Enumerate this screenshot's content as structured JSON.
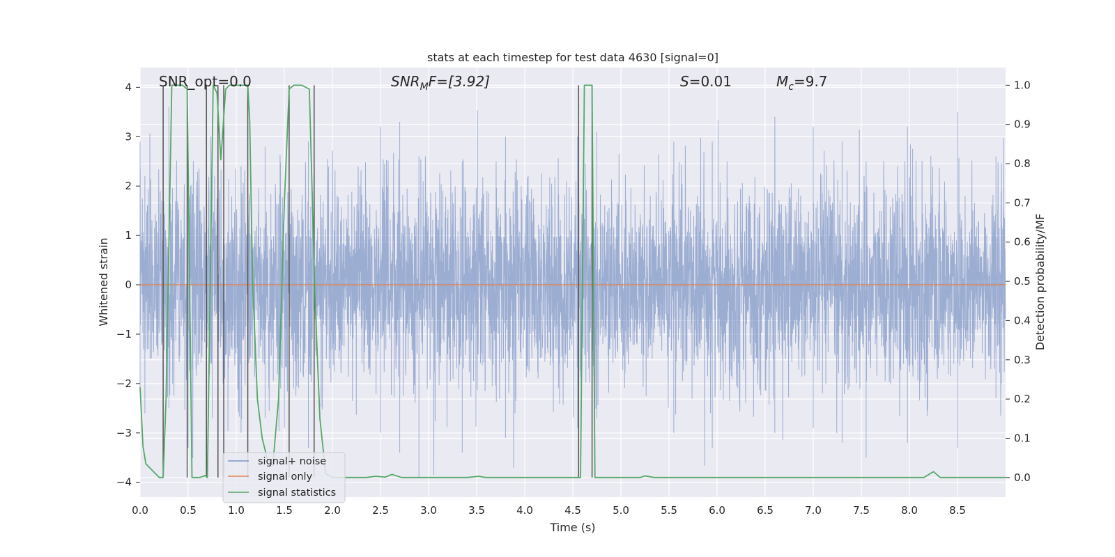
{
  "chart_data": {
    "type": "line",
    "title": "stats at each timestep for test data 4630 [signal=0]",
    "xlabel": "Time (s)",
    "ylabel_left": "Whitened strain",
    "ylabel_right": "Detection probability/MF",
    "xlim": [
      0.0,
      9.0
    ],
    "ylim_left": [
      -4.3,
      4.4
    ],
    "ylim_right": [
      -0.05,
      1.045
    ],
    "x_ticks": [
      0.0,
      0.5,
      1.0,
      1.5,
      2.0,
      2.5,
      3.0,
      3.5,
      4.0,
      4.5,
      5.0,
      5.5,
      6.0,
      6.5,
      7.0,
      7.5,
      8.0,
      8.5
    ],
    "x_tick_labels": [
      "0.0",
      "0.5",
      "1.0",
      "1.5",
      "2.0",
      "2.5",
      "3.0",
      "3.5",
      "4.0",
      "4.5",
      "5.0",
      "5.5",
      "6.0",
      "6.5",
      "7.0",
      "7.5",
      "8.0",
      "8.5"
    ],
    "y_ticks_left": [
      -4,
      -3,
      -2,
      -1,
      0,
      1,
      2,
      3,
      4
    ],
    "y_tick_labels_left": [
      "−4",
      "−3",
      "−2",
      "−1",
      "0",
      "1",
      "2",
      "3",
      "4"
    ],
    "y_ticks_right": [
      0.0,
      0.1,
      0.2,
      0.3,
      0.4,
      0.5,
      0.6,
      0.7,
      0.8,
      0.9,
      1.0
    ],
    "y_tick_labels_right": [
      "0.0",
      "0.1",
      "0.2",
      "0.3",
      "0.4",
      "0.5",
      "0.6",
      "0.7",
      "0.8",
      "0.9",
      "1.0"
    ],
    "grid": true,
    "annotations": {
      "snr_opt": "SNR_opt=0.0",
      "snr_mf_label": "SNR",
      "snr_mf_sub": "M",
      "snr_mf_rest": "F=[3.92]",
      "s_label": "S",
      "s_rest": "=0.01",
      "mc_label": "M",
      "mc_sub": "c",
      "mc_rest": "=9.7"
    },
    "legend": {
      "location": "lower-left",
      "entries": [
        "signal+ noise",
        "signal only",
        "signal statistics"
      ]
    },
    "colors": {
      "noise": "#7b93c4",
      "signal_only": "#dd8452",
      "statistics": "#55a868",
      "markers": "#555555",
      "background": "#eaeaf2",
      "grid": "#ffffff"
    },
    "series": [
      {
        "name": "signal+ noise",
        "axis": "left",
        "description_stats": {
          "sample_rate_hz": 2048,
          "std": 1.0
        },
        "envelope_peaks": [
          [
            0.0,
            2.9,
            -2.1
          ],
          [
            0.05,
            2.2,
            -2.6
          ],
          [
            0.3,
            3.6,
            -2.5
          ],
          [
            0.5,
            2.7,
            -3.3
          ],
          [
            0.75,
            2.9,
            -2.7
          ],
          [
            1.05,
            2.4,
            -3.0
          ],
          [
            1.3,
            2.8,
            -2.7
          ],
          [
            1.75,
            2.9,
            -3.3
          ],
          [
            2.5,
            3.2,
            -3.0
          ],
          [
            2.7,
            3.3,
            -3.4
          ],
          [
            2.9,
            2.6,
            -3.9
          ],
          [
            3.35,
            2.5,
            -3.4
          ],
          [
            3.8,
            3.0,
            -3.1
          ],
          [
            4.55,
            3.0,
            -2.9
          ],
          [
            4.75,
            3.1,
            -2.7
          ],
          [
            5.55,
            2.9,
            -3.0
          ],
          [
            5.95,
            2.9,
            -3.3
          ],
          [
            6.6,
            3.1,
            -3.0
          ],
          [
            7.0,
            3.2,
            -2.9
          ],
          [
            7.3,
            2.9,
            -3.2
          ],
          [
            7.55,
            2.5,
            -3.5
          ],
          [
            7.98,
            3.2,
            -3.2
          ],
          [
            8.5,
            3.5,
            -3.3
          ],
          [
            8.9,
            2.6,
            -2.3
          ]
        ]
      },
      {
        "name": "signal only",
        "axis": "left",
        "x": [
          0.0,
          9.0
        ],
        "y": [
          0.0,
          0.0
        ]
      },
      {
        "name": "signal statistics",
        "axis": "right",
        "x": [
          0.0,
          0.03,
          0.06,
          0.2,
          0.24,
          0.27,
          0.33,
          0.44,
          0.49,
          0.54,
          0.62,
          0.68,
          0.7,
          0.76,
          0.8,
          0.84,
          0.89,
          0.93,
          1.0,
          1.12,
          1.14,
          1.17,
          1.22,
          1.27,
          1.32,
          1.38,
          1.44,
          1.5,
          1.55,
          1.6,
          1.68,
          1.76,
          1.82,
          1.87,
          1.93,
          2.0,
          2.05,
          2.25,
          2.35,
          2.45,
          2.55,
          2.62,
          2.72,
          3.4,
          3.52,
          3.6,
          4.0,
          4.55,
          4.58,
          4.62,
          4.7,
          4.73,
          4.78,
          5.0,
          5.2,
          5.25,
          5.35,
          6.0,
          7.0,
          8.0,
          8.15,
          8.25,
          8.32,
          8.5,
          9.0
        ],
        "y": [
          0.23,
          0.08,
          0.035,
          0.0,
          0.0,
          0.2,
          1.0,
          1.0,
          0.99,
          0.0,
          0.0,
          0.005,
          0.0,
          1.0,
          0.98,
          0.81,
          0.99,
          1.0,
          1.0,
          1.0,
          0.91,
          0.5,
          0.2,
          0.1,
          0.05,
          0.03,
          0.2,
          0.7,
          0.99,
          1.0,
          1.0,
          0.99,
          0.45,
          0.15,
          0.01,
          0.0,
          0.0,
          0.0,
          0.0,
          0.003,
          0.001,
          0.008,
          0.0,
          0.0,
          0.003,
          0.0,
          0.0,
          0.0,
          0.0,
          1.0,
          1.0,
          0.0,
          0.0,
          0.0,
          0.0,
          0.004,
          0.0,
          0.0,
          0.0,
          0.0,
          0.0,
          0.015,
          0.0,
          0.0,
          0.0
        ]
      }
    ],
    "vertical_markers_x": [
      0.24,
      0.49,
      0.69,
      0.81,
      0.87,
      1.12,
      1.55,
      1.81,
      4.56,
      4.7
    ]
  }
}
